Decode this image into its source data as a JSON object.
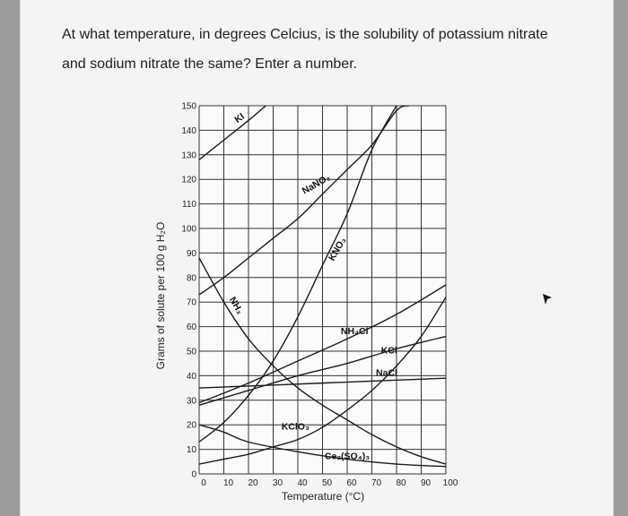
{
  "question": "At what temperature, in degrees Celcius, is the solubility of potassium nitrate and sodium nitrate the same? Enter a number.",
  "chart_data": {
    "type": "line",
    "title": "",
    "xlabel": "Temperature (°C)",
    "ylabel": "Grams of solute per 100 g H₂O",
    "xlim": [
      0,
      100
    ],
    "ylim": [
      0,
      150
    ],
    "x_ticks": [
      0,
      10,
      20,
      30,
      40,
      50,
      60,
      70,
      80,
      90,
      100
    ],
    "y_ticks": [
      0,
      10,
      20,
      30,
      40,
      50,
      60,
      70,
      80,
      90,
      100,
      110,
      120,
      130,
      140,
      150
    ],
    "grid": true,
    "series": [
      {
        "name": "KI",
        "points": [
          [
            0,
            128
          ],
          [
            10,
            136
          ],
          [
            20,
            144
          ],
          [
            27,
            150
          ]
        ],
        "label_at": [
          17,
          144
        ]
      },
      {
        "name": "NaNO₃",
        "points": [
          [
            0,
            73
          ],
          [
            10,
            80
          ],
          [
            20,
            88
          ],
          [
            30,
            96
          ],
          [
            40,
            104
          ],
          [
            50,
            114
          ],
          [
            60,
            124
          ],
          [
            70,
            134
          ],
          [
            80,
            148
          ],
          [
            85,
            150
          ]
        ],
        "label_at": [
          48,
          117
        ]
      },
      {
        "name": "KNO₃",
        "points": [
          [
            0,
            13
          ],
          [
            10,
            21
          ],
          [
            20,
            32
          ],
          [
            30,
            46
          ],
          [
            40,
            64
          ],
          [
            50,
            85
          ],
          [
            60,
            106
          ],
          [
            70,
            132
          ],
          [
            80,
            150
          ]
        ],
        "label_at": [
          57,
          91
        ]
      },
      {
        "name": "NH₄Cl",
        "points": [
          [
            0,
            29
          ],
          [
            20,
            37
          ],
          [
            40,
            46
          ],
          [
            60,
            55
          ],
          [
            80,
            65
          ],
          [
            100,
            77
          ]
        ],
        "label_at": [
          63,
          57
        ]
      },
      {
        "name": "KCl",
        "points": [
          [
            0,
            28
          ],
          [
            20,
            34
          ],
          [
            40,
            40
          ],
          [
            60,
            45
          ],
          [
            80,
            51
          ],
          [
            100,
            56
          ]
        ],
        "label_at": [
          77,
          49
        ]
      },
      {
        "name": "NaCl",
        "points": [
          [
            0,
            35
          ],
          [
            50,
            37
          ],
          [
            100,
            39
          ]
        ],
        "label_at": [
          76,
          40
        ]
      },
      {
        "name": "NH₃",
        "points": [
          [
            0,
            88
          ],
          [
            10,
            70
          ],
          [
            20,
            55
          ],
          [
            30,
            44
          ],
          [
            40,
            35
          ],
          [
            50,
            28
          ],
          [
            60,
            22
          ],
          [
            70,
            16
          ],
          [
            80,
            11
          ],
          [
            90,
            7
          ],
          [
            100,
            4
          ]
        ],
        "label_at": [
          14,
          68
        ]
      },
      {
        "name": "KClO₃",
        "points": [
          [
            0,
            4
          ],
          [
            10,
            6
          ],
          [
            20,
            8
          ],
          [
            30,
            11
          ],
          [
            40,
            14
          ],
          [
            50,
            19
          ],
          [
            60,
            26
          ],
          [
            70,
            34
          ],
          [
            80,
            44
          ],
          [
            90,
            56
          ],
          [
            100,
            72
          ]
        ],
        "label_at": [
          39,
          18
        ]
      },
      {
        "name": "Ce₂(SO₄)₃",
        "points": [
          [
            0,
            20
          ],
          [
            10,
            17
          ],
          [
            20,
            13
          ],
          [
            40,
            9
          ],
          [
            60,
            6
          ],
          [
            80,
            4
          ],
          [
            100,
            3
          ]
        ],
        "label_at": [
          60,
          6
        ]
      }
    ]
  }
}
